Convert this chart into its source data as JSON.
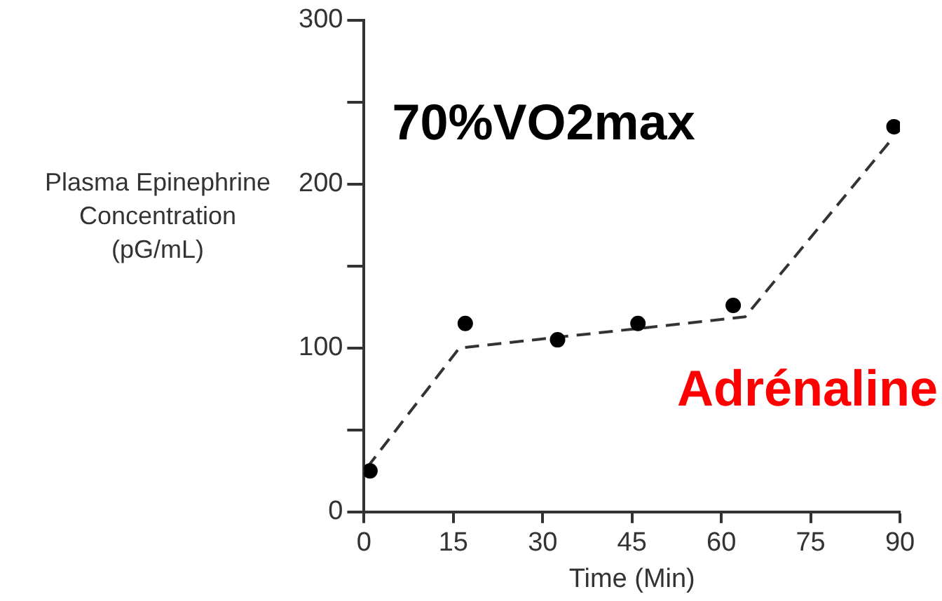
{
  "chart_data": {
    "type": "scatter",
    "xlabel": "Time (Min)",
    "ylabel": "Plasma Epinephrine Concentration (pG/mL)",
    "annotations": [
      "70%VO2max",
      "Adrénaline"
    ],
    "xlim": [
      0,
      90
    ],
    "xticks": [
      0,
      15,
      30,
      45,
      60,
      75,
      90
    ],
    "ylim": [
      0,
      300
    ],
    "yticks": [
      0,
      {
        "value": 50,
        "label": null
      },
      100,
      {
        "value": 150,
        "label": null
      },
      200,
      {
        "value": 250,
        "label": null
      },
      300
    ],
    "grid": false,
    "legend": false,
    "series": [
      {
        "color": "#000000",
        "marker": "circle",
        "x": [
          1,
          17,
          32.5,
          46,
          62,
          89
        ],
        "values": [
          25,
          115,
          105,
          115,
          126,
          235
        ]
      },
      {
        "type": "line",
        "color": "#333333",
        "marker": "none",
        "line_style": "dashed",
        "x": [
          0.5,
          16,
          64,
          89
        ],
        "values": [
          27,
          100,
          119,
          229
        ]
      }
    ]
  }
}
